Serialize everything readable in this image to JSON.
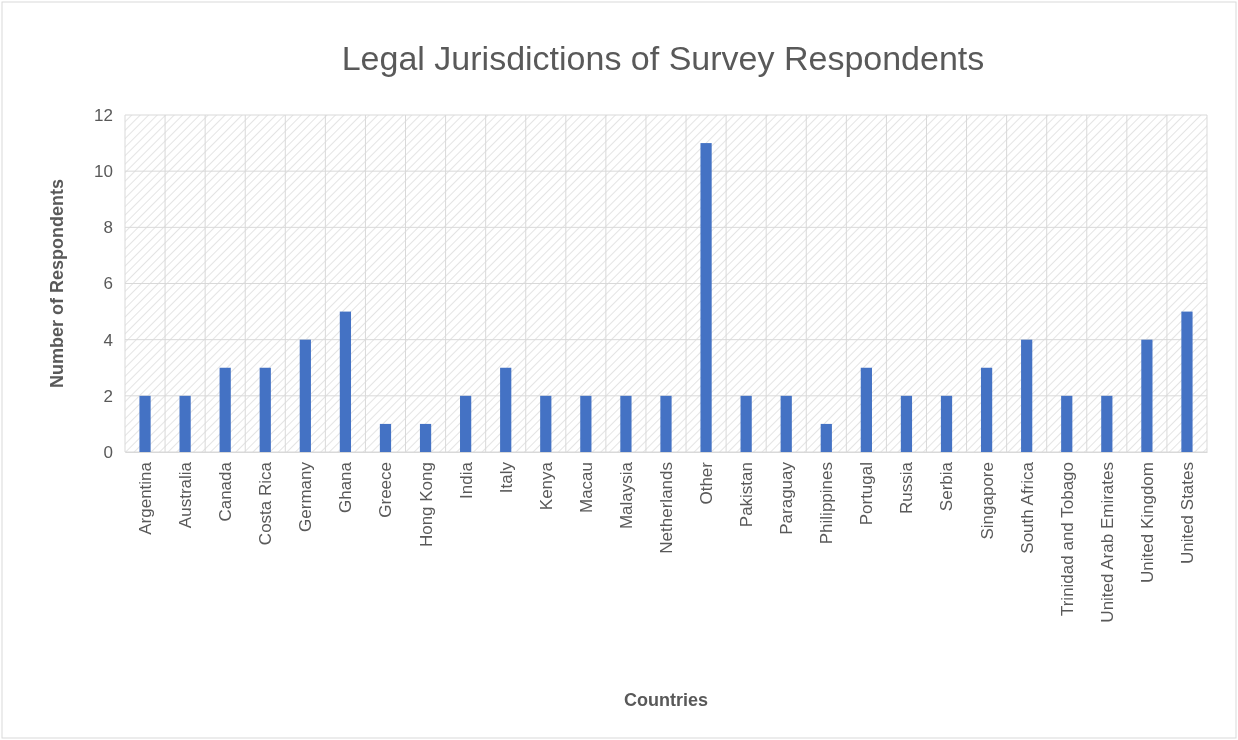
{
  "chart_data": {
    "type": "bar",
    "title": "Legal Jurisdictions of Survey Respondents",
    "xlabel": "Countries",
    "ylabel": "Number of Respondents",
    "categories": [
      "Argentina",
      "Australia",
      "Canada",
      "Costa Rica",
      "Germany",
      "Ghana",
      "Greece",
      "Hong Kong",
      "India",
      "Italy",
      "Kenya",
      "Macau",
      "Malaysia",
      "Netherlands",
      "Other",
      "Pakistan",
      "Paraguay",
      "Philippines",
      "Portugal",
      "Russia",
      "Serbia",
      "Singapore",
      "South Africa",
      "Trinidad and Tobago",
      "United Arab Emirates",
      "United Kingdom",
      "United States"
    ],
    "values": [
      2,
      2,
      3,
      3,
      4,
      5,
      1,
      1,
      2,
      3,
      2,
      2,
      2,
      2,
      11,
      2,
      2,
      1,
      3,
      2,
      2,
      3,
      4,
      2,
      2,
      4,
      5
    ],
    "color": "#4472c4",
    "ylim": [
      0,
      12
    ],
    "yticks": [
      0,
      2,
      4,
      6,
      8,
      10,
      12
    ],
    "grid": true
  }
}
